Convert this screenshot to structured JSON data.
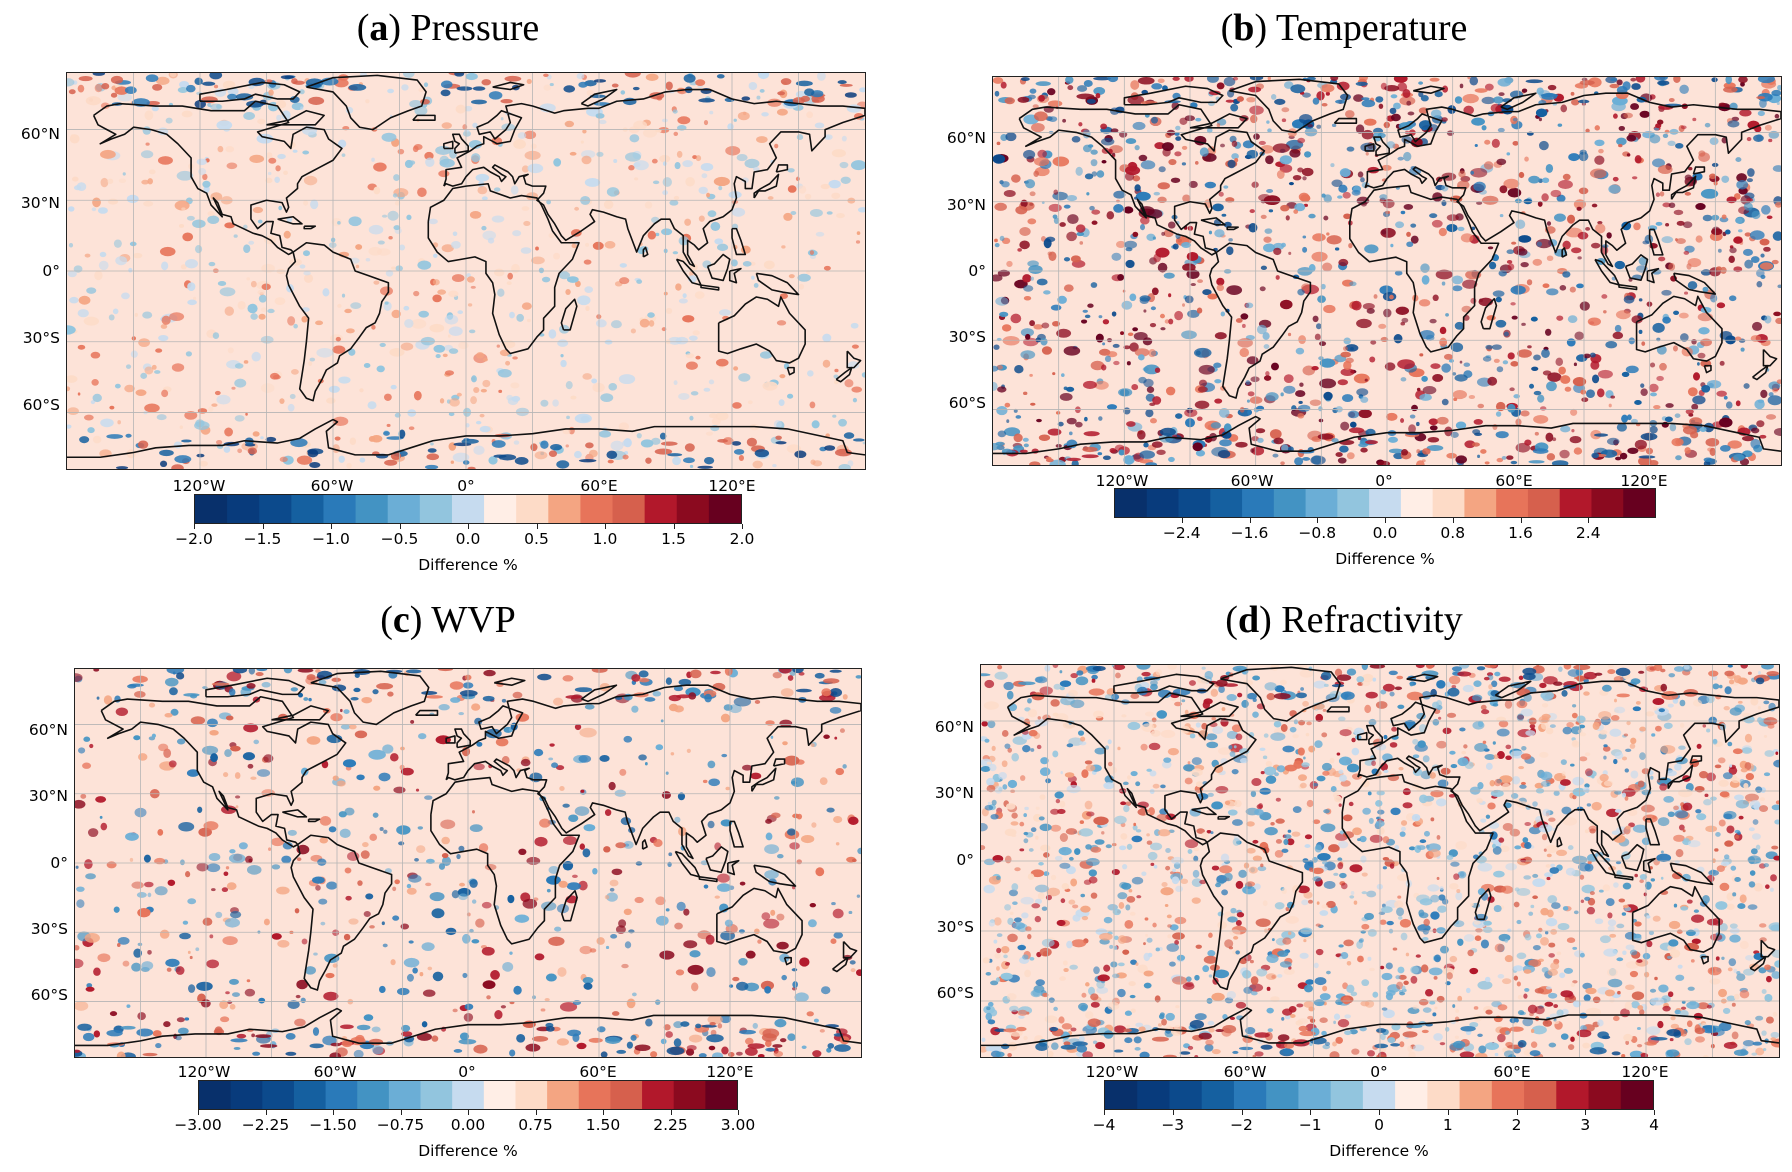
{
  "colors": {
    "diverging_scale": [
      "#08306b",
      "#083b7c",
      "#0c4a8c",
      "#1560a0",
      "#2a7ab9",
      "#4393c3",
      "#6baed6",
      "#92c5de",
      "#c6dbef",
      "#ffeee6",
      "#fddbc7",
      "#f4a582",
      "#e7745a",
      "#d6604d",
      "#b2182b",
      "#8b0a1f",
      "#67001f"
    ],
    "background_tint": "#fde3d8",
    "coastline": "#111111",
    "grid": "#b5b5b5"
  },
  "lat_labels": [
    "60°N",
    "30°N",
    "0°",
    "30°S",
    "60°S"
  ],
  "lon_labels": [
    "120°W",
    "60°W",
    "0°",
    "60°E",
    "120°E"
  ],
  "panels": [
    {
      "letter": "a",
      "name": "Pressure",
      "colorbar": {
        "ticks": [
          "−2.0",
          "−1.5",
          "−1.0",
          "−0.5",
          "0.0",
          "0.5",
          "1.0",
          "1.5",
          "2.0"
        ],
        "tick_values": [
          -2.0,
          -1.5,
          -1.0,
          -0.5,
          0.0,
          0.5,
          1.0,
          1.5,
          2.0
        ],
        "range": [
          -2.0,
          2.0
        ],
        "label": "Difference %"
      }
    },
    {
      "letter": "b",
      "name": "Temperature",
      "colorbar": {
        "ticks": [
          "−2.4",
          "−1.6",
          "−0.8",
          "0.0",
          "0.8",
          "1.6",
          "2.4"
        ],
        "tick_values": [
          -2.4,
          -1.6,
          -0.8,
          0.0,
          0.8,
          1.6,
          2.4
        ],
        "range": [
          -3.2,
          3.2
        ],
        "label": "Difference %"
      }
    },
    {
      "letter": "c",
      "name": "WVP",
      "colorbar": {
        "ticks": [
          "−3.00",
          "−2.25",
          "−1.50",
          "−0.75",
          "0.00",
          "0.75",
          "1.50",
          "2.25",
          "3.00"
        ],
        "tick_values": [
          -3.0,
          -2.25,
          -1.5,
          -0.75,
          0.0,
          0.75,
          1.5,
          2.25,
          3.0
        ],
        "range": [
          -3.0,
          3.0
        ],
        "label": "Difference %"
      }
    },
    {
      "letter": "d",
      "name": "Refractivity",
      "colorbar": {
        "ticks": [
          "−4",
          "−3",
          "−2",
          "−1",
          "0",
          "1",
          "2",
          "3",
          "4"
        ],
        "tick_values": [
          -4,
          -3,
          -2,
          -1,
          0,
          1,
          2,
          3,
          4
        ],
        "range": [
          -4,
          4
        ],
        "label": "Difference %"
      }
    }
  ]
}
